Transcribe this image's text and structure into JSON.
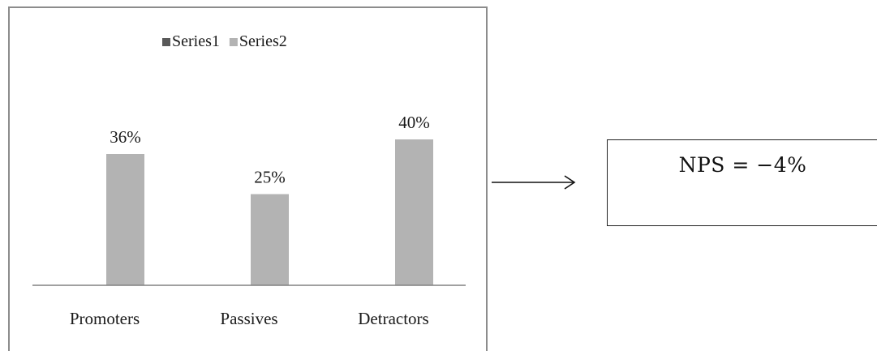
{
  "chart_data": {
    "type": "bar",
    "categories": [
      "Promoters",
      "Passives",
      "Detractors"
    ],
    "series": [
      {
        "name": "Series1",
        "values": [
          null,
          null,
          null
        ],
        "color": "#595959"
      },
      {
        "name": "Series2",
        "values": [
          36,
          25,
          40
        ],
        "color": "#b3b3b3"
      }
    ],
    "data_labels": [
      "36%",
      "25%",
      "40%"
    ],
    "legend_position": "top",
    "grid": false,
    "ylim": [
      0,
      45
    ]
  },
  "result": {
    "text": "NPS = −4%"
  },
  "arrow": {
    "icon": "arrow-right-icon"
  }
}
